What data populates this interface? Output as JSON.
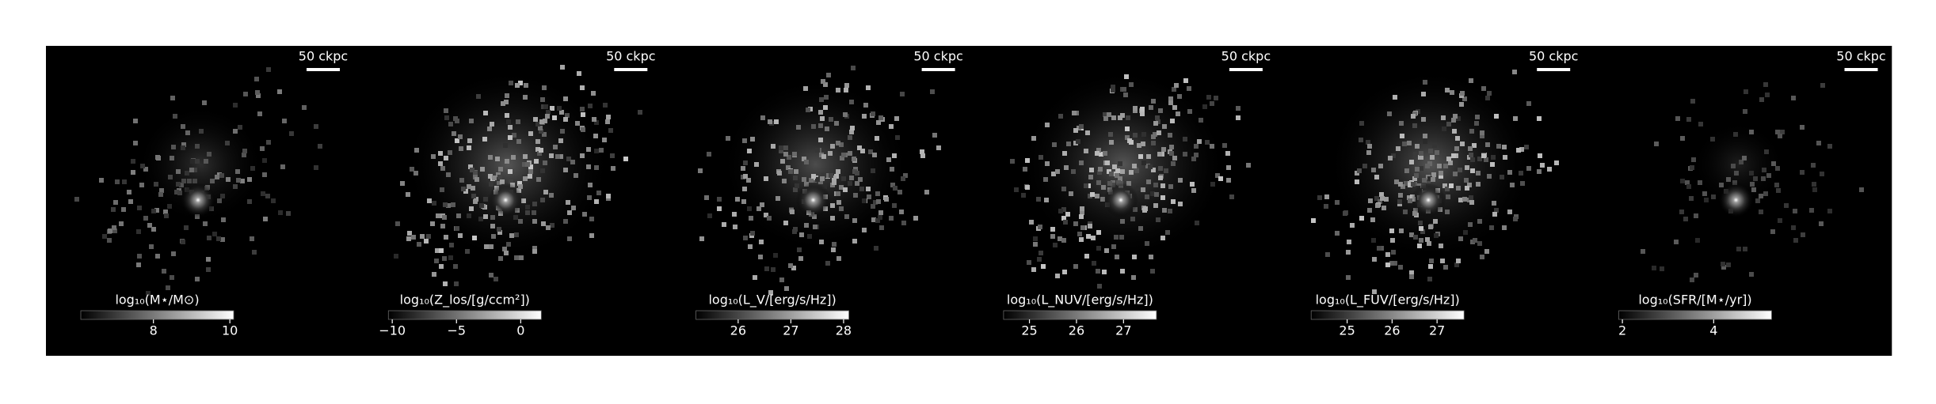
{
  "panels": [
    {
      "scale_bar_label": "50 ckpc",
      "colorbar": {
        "label": "log₁₀(M⋆/M⊙)",
        "clim": [
          6.1,
          10.1
        ],
        "ticks": [
          8,
          10
        ]
      }
    },
    {
      "scale_bar_label": "50 ckpc",
      "colorbar": {
        "label": "log₁₀(Z_los/[g/ccm²])",
        "clim": [
          -10.3,
          1.6
        ],
        "ticks": [
          {
            "value": -10,
            "label": "−10"
          },
          {
            "value": -5,
            "label": "−5"
          },
          0
        ]
      }
    },
    {
      "scale_bar_label": "50 ckpc",
      "colorbar": {
        "label": "log₁₀(L_V/[erg/s/Hz])",
        "clim": [
          25.2,
          28.1
        ],
        "ticks": [
          26,
          27,
          28
        ]
      }
    },
    {
      "scale_bar_label": "50 ckpc",
      "colorbar": {
        "label": "log₁₀(L_NUV/[erg/s/Hz])",
        "clim": [
          24.45,
          27.7
        ],
        "ticks": [
          25,
          26,
          27
        ]
      }
    },
    {
      "scale_bar_label": "50 ckpc",
      "colorbar": {
        "label": "log₁₀(L_FUV/[erg/s/Hz])",
        "clim": [
          24.2,
          27.6
        ],
        "ticks": [
          25,
          26,
          27
        ]
      }
    },
    {
      "scale_bar_label": "50 ckpc",
      "colorbar": {
        "label": "log₁₀(SFR/[M⋆/yr])",
        "clim": [
          1.92,
          5.27
        ],
        "ticks": [
          2,
          4
        ]
      }
    }
  ]
}
